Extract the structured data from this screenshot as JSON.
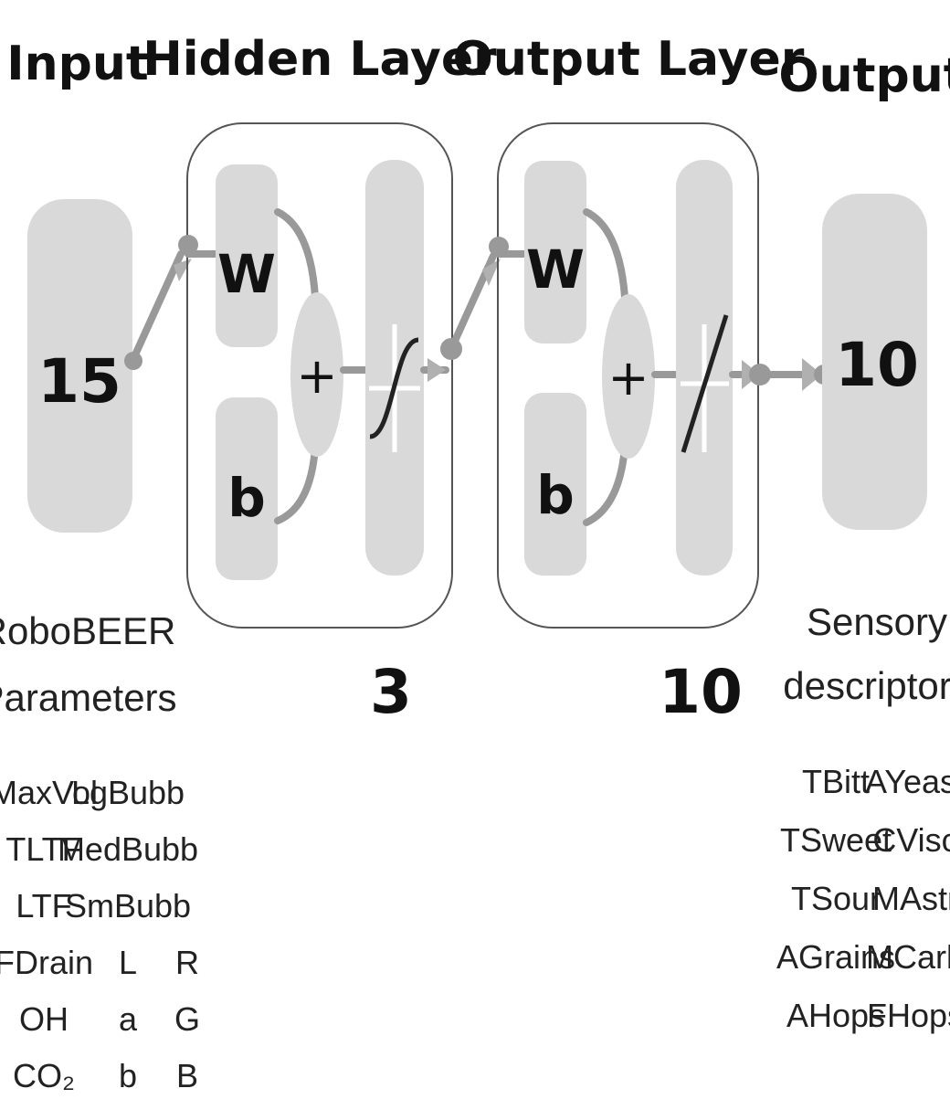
{
  "headings": {
    "input": "Input",
    "hidden": "Hidden Layer",
    "output_layer": "Output Layer",
    "output": "Output"
  },
  "input_size": "15",
  "output_size": "10",
  "hidden_size": "3",
  "output_layer_size": "10",
  "weight_symbol": "W",
  "bias_symbol": "b",
  "sum_symbol": "+",
  "input_caption": [
    "RoboBEER",
    "Parameters"
  ],
  "output_caption": [
    "Sensory",
    "descriptors"
  ],
  "input_params": [
    [
      "MaxVol",
      "LgBubb",
      ""
    ],
    [
      "TLTF",
      "MedBubb",
      ""
    ],
    [
      "LTF",
      "SmBubb",
      ""
    ],
    [
      "FDrain",
      "L",
      "R"
    ],
    [
      "OH",
      "a",
      "G"
    ],
    [
      "CO₂",
      "b",
      "B"
    ]
  ],
  "output_descriptors": [
    [
      "TBitt",
      "AYeast"
    ],
    [
      "TSweet",
      "CVisc"
    ],
    [
      "TSour",
      "MAstr"
    ],
    [
      "AGrains",
      "MCarb"
    ],
    [
      "AHops",
      "FHops"
    ]
  ]
}
